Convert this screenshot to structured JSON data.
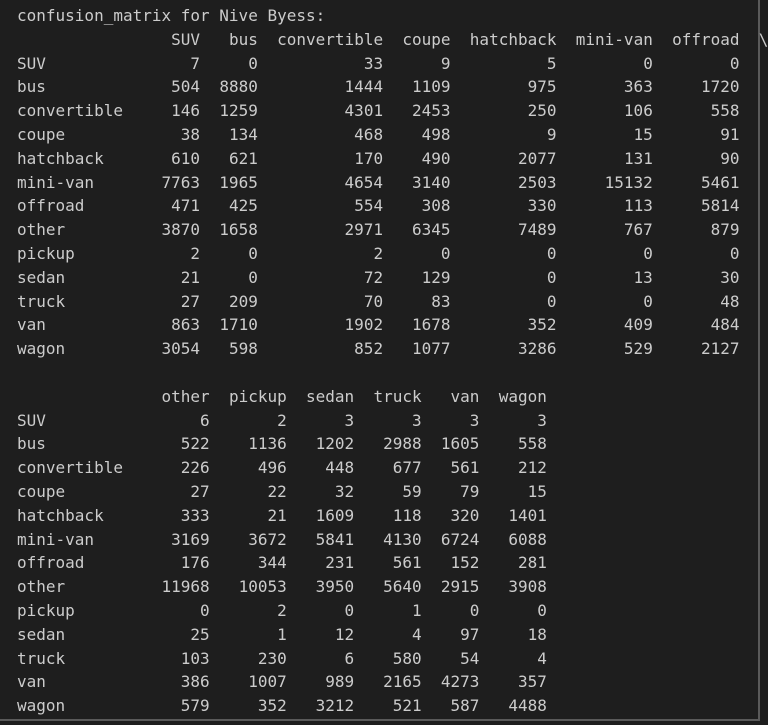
{
  "title": "confusion_matrix for Nive Byess:",
  "table1": {
    "columns": [
      "SUV",
      "bus",
      "convertible",
      "coupe",
      "hatchback",
      "mini-van",
      "offroad"
    ],
    "continuation_marker": "\\",
    "rows": [
      {
        "label": "SUV",
        "values": [
          7,
          0,
          33,
          9,
          5,
          0,
          0
        ]
      },
      {
        "label": "bus",
        "values": [
          504,
          8880,
          1444,
          1109,
          975,
          363,
          1720
        ]
      },
      {
        "label": "convertible",
        "values": [
          146,
          1259,
          4301,
          2453,
          250,
          106,
          558
        ]
      },
      {
        "label": "coupe",
        "values": [
          38,
          134,
          468,
          498,
          9,
          15,
          91
        ]
      },
      {
        "label": "hatchback",
        "values": [
          610,
          621,
          170,
          490,
          2077,
          131,
          90
        ]
      },
      {
        "label": "mini-van",
        "values": [
          7763,
          1965,
          4654,
          3140,
          2503,
          15132,
          5461
        ]
      },
      {
        "label": "offroad",
        "values": [
          471,
          425,
          554,
          308,
          330,
          113,
          5814
        ]
      },
      {
        "label": "other",
        "values": [
          3870,
          1658,
          2971,
          6345,
          7489,
          767,
          879
        ]
      },
      {
        "label": "pickup",
        "values": [
          2,
          0,
          2,
          0,
          0,
          0,
          0
        ]
      },
      {
        "label": "sedan",
        "values": [
          21,
          0,
          72,
          129,
          0,
          13,
          30
        ]
      },
      {
        "label": "truck",
        "values": [
          27,
          209,
          70,
          83,
          0,
          0,
          48
        ]
      },
      {
        "label": "van",
        "values": [
          863,
          1710,
          1902,
          1678,
          352,
          409,
          484
        ]
      },
      {
        "label": "wagon",
        "values": [
          3054,
          598,
          852,
          1077,
          3286,
          529,
          2127
        ]
      }
    ]
  },
  "table2": {
    "columns": [
      "other",
      "pickup",
      "sedan",
      "truck",
      "van",
      "wagon"
    ],
    "rows": [
      {
        "label": "SUV",
        "values": [
          6,
          2,
          3,
          3,
          3,
          3
        ]
      },
      {
        "label": "bus",
        "values": [
          522,
          1136,
          1202,
          2988,
          1605,
          558
        ]
      },
      {
        "label": "convertible",
        "values": [
          226,
          496,
          448,
          677,
          561,
          212
        ]
      },
      {
        "label": "coupe",
        "values": [
          27,
          22,
          32,
          59,
          79,
          15
        ]
      },
      {
        "label": "hatchback",
        "values": [
          333,
          21,
          1609,
          118,
          320,
          1401
        ]
      },
      {
        "label": "mini-van",
        "values": [
          3169,
          3672,
          5841,
          4130,
          6724,
          6088
        ]
      },
      {
        "label": "offroad",
        "values": [
          176,
          344,
          231,
          561,
          152,
          281
        ]
      },
      {
        "label": "other",
        "values": [
          11968,
          10053,
          3950,
          5640,
          2915,
          3908
        ]
      },
      {
        "label": "pickup",
        "values": [
          0,
          2,
          0,
          1,
          0,
          0
        ]
      },
      {
        "label": "sedan",
        "values": [
          25,
          1,
          12,
          4,
          97,
          18
        ]
      },
      {
        "label": "truck",
        "values": [
          103,
          230,
          6,
          580,
          54,
          4
        ]
      },
      {
        "label": "van",
        "values": [
          386,
          1007,
          989,
          2165,
          4273,
          357
        ]
      },
      {
        "label": "wagon",
        "values": [
          579,
          352,
          3212,
          521,
          587,
          4488
        ]
      }
    ]
  }
}
